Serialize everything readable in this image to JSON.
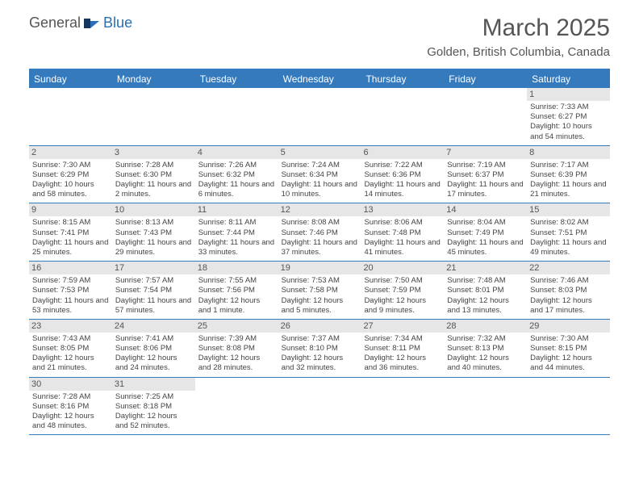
{
  "logo": {
    "general": "General",
    "blue": "Blue"
  },
  "title": "March 2025",
  "location": "Golden, British Columbia, Canada",
  "colors": {
    "header_blue": "#357abd",
    "logo_blue": "#2a6fb5",
    "text_gray": "#555555",
    "body_text": "#444444",
    "daynum_bg": "#e6e6e6",
    "background": "#ffffff"
  },
  "fonts": {
    "title_size": 30,
    "location_size": 15,
    "dow_size": 12,
    "daynum_size": 11,
    "body_size": 9.5
  },
  "dow": [
    "Sunday",
    "Monday",
    "Tuesday",
    "Wednesday",
    "Thursday",
    "Friday",
    "Saturday"
  ],
  "weeks": [
    [
      null,
      null,
      null,
      null,
      null,
      null,
      {
        "n": "1",
        "sr": "Sunrise: 7:33 AM",
        "ss": "Sunset: 6:27 PM",
        "dl": "Daylight: 10 hours and 54 minutes."
      }
    ],
    [
      {
        "n": "2",
        "sr": "Sunrise: 7:30 AM",
        "ss": "Sunset: 6:29 PM",
        "dl": "Daylight: 10 hours and 58 minutes."
      },
      {
        "n": "3",
        "sr": "Sunrise: 7:28 AM",
        "ss": "Sunset: 6:30 PM",
        "dl": "Daylight: 11 hours and 2 minutes."
      },
      {
        "n": "4",
        "sr": "Sunrise: 7:26 AM",
        "ss": "Sunset: 6:32 PM",
        "dl": "Daylight: 11 hours and 6 minutes."
      },
      {
        "n": "5",
        "sr": "Sunrise: 7:24 AM",
        "ss": "Sunset: 6:34 PM",
        "dl": "Daylight: 11 hours and 10 minutes."
      },
      {
        "n": "6",
        "sr": "Sunrise: 7:22 AM",
        "ss": "Sunset: 6:36 PM",
        "dl": "Daylight: 11 hours and 14 minutes."
      },
      {
        "n": "7",
        "sr": "Sunrise: 7:19 AM",
        "ss": "Sunset: 6:37 PM",
        "dl": "Daylight: 11 hours and 17 minutes."
      },
      {
        "n": "8",
        "sr": "Sunrise: 7:17 AM",
        "ss": "Sunset: 6:39 PM",
        "dl": "Daylight: 11 hours and 21 minutes."
      }
    ],
    [
      {
        "n": "9",
        "sr": "Sunrise: 8:15 AM",
        "ss": "Sunset: 7:41 PM",
        "dl": "Daylight: 11 hours and 25 minutes."
      },
      {
        "n": "10",
        "sr": "Sunrise: 8:13 AM",
        "ss": "Sunset: 7:43 PM",
        "dl": "Daylight: 11 hours and 29 minutes."
      },
      {
        "n": "11",
        "sr": "Sunrise: 8:11 AM",
        "ss": "Sunset: 7:44 PM",
        "dl": "Daylight: 11 hours and 33 minutes."
      },
      {
        "n": "12",
        "sr": "Sunrise: 8:08 AM",
        "ss": "Sunset: 7:46 PM",
        "dl": "Daylight: 11 hours and 37 minutes."
      },
      {
        "n": "13",
        "sr": "Sunrise: 8:06 AM",
        "ss": "Sunset: 7:48 PM",
        "dl": "Daylight: 11 hours and 41 minutes."
      },
      {
        "n": "14",
        "sr": "Sunrise: 8:04 AM",
        "ss": "Sunset: 7:49 PM",
        "dl": "Daylight: 11 hours and 45 minutes."
      },
      {
        "n": "15",
        "sr": "Sunrise: 8:02 AM",
        "ss": "Sunset: 7:51 PM",
        "dl": "Daylight: 11 hours and 49 minutes."
      }
    ],
    [
      {
        "n": "16",
        "sr": "Sunrise: 7:59 AM",
        "ss": "Sunset: 7:53 PM",
        "dl": "Daylight: 11 hours and 53 minutes."
      },
      {
        "n": "17",
        "sr": "Sunrise: 7:57 AM",
        "ss": "Sunset: 7:54 PM",
        "dl": "Daylight: 11 hours and 57 minutes."
      },
      {
        "n": "18",
        "sr": "Sunrise: 7:55 AM",
        "ss": "Sunset: 7:56 PM",
        "dl": "Daylight: 12 hours and 1 minute."
      },
      {
        "n": "19",
        "sr": "Sunrise: 7:53 AM",
        "ss": "Sunset: 7:58 PM",
        "dl": "Daylight: 12 hours and 5 minutes."
      },
      {
        "n": "20",
        "sr": "Sunrise: 7:50 AM",
        "ss": "Sunset: 7:59 PM",
        "dl": "Daylight: 12 hours and 9 minutes."
      },
      {
        "n": "21",
        "sr": "Sunrise: 7:48 AM",
        "ss": "Sunset: 8:01 PM",
        "dl": "Daylight: 12 hours and 13 minutes."
      },
      {
        "n": "22",
        "sr": "Sunrise: 7:46 AM",
        "ss": "Sunset: 8:03 PM",
        "dl": "Daylight: 12 hours and 17 minutes."
      }
    ],
    [
      {
        "n": "23",
        "sr": "Sunrise: 7:43 AM",
        "ss": "Sunset: 8:05 PM",
        "dl": "Daylight: 12 hours and 21 minutes."
      },
      {
        "n": "24",
        "sr": "Sunrise: 7:41 AM",
        "ss": "Sunset: 8:06 PM",
        "dl": "Daylight: 12 hours and 24 minutes."
      },
      {
        "n": "25",
        "sr": "Sunrise: 7:39 AM",
        "ss": "Sunset: 8:08 PM",
        "dl": "Daylight: 12 hours and 28 minutes."
      },
      {
        "n": "26",
        "sr": "Sunrise: 7:37 AM",
        "ss": "Sunset: 8:10 PM",
        "dl": "Daylight: 12 hours and 32 minutes."
      },
      {
        "n": "27",
        "sr": "Sunrise: 7:34 AM",
        "ss": "Sunset: 8:11 PM",
        "dl": "Daylight: 12 hours and 36 minutes."
      },
      {
        "n": "28",
        "sr": "Sunrise: 7:32 AM",
        "ss": "Sunset: 8:13 PM",
        "dl": "Daylight: 12 hours and 40 minutes."
      },
      {
        "n": "29",
        "sr": "Sunrise: 7:30 AM",
        "ss": "Sunset: 8:15 PM",
        "dl": "Daylight: 12 hours and 44 minutes."
      }
    ],
    [
      {
        "n": "30",
        "sr": "Sunrise: 7:28 AM",
        "ss": "Sunset: 8:16 PM",
        "dl": "Daylight: 12 hours and 48 minutes."
      },
      {
        "n": "31",
        "sr": "Sunrise: 7:25 AM",
        "ss": "Sunset: 8:18 PM",
        "dl": "Daylight: 12 hours and 52 minutes."
      },
      null,
      null,
      null,
      null,
      null
    ]
  ]
}
